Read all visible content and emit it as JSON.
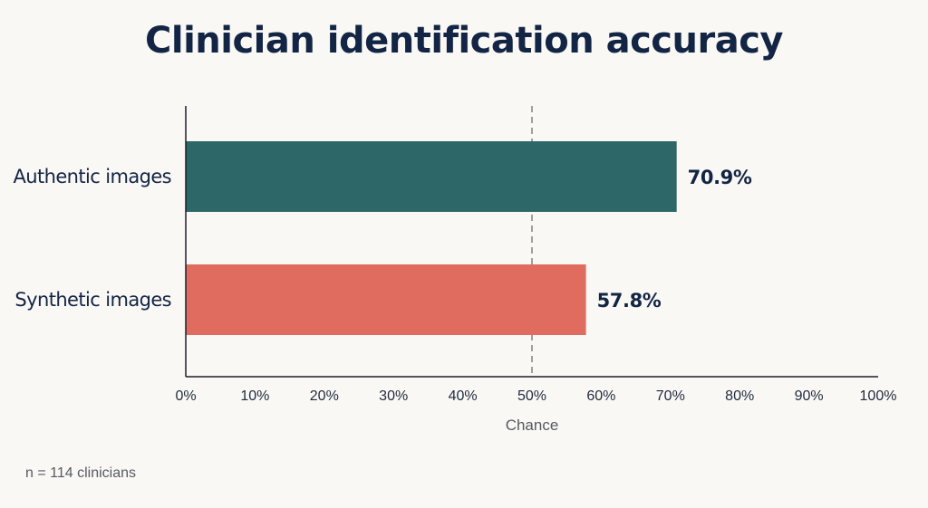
{
  "chart_data": {
    "type": "bar",
    "orientation": "horizontal",
    "title": "Clinician identification accuracy",
    "categories": [
      "Authentic images",
      "Synthetic images"
    ],
    "values": [
      70.9,
      57.8
    ],
    "value_labels": [
      "70.9%",
      "57.8%"
    ],
    "colors": [
      "#2e6767",
      "#e06b5f"
    ],
    "xlim": [
      0,
      100
    ],
    "xticks": [
      0,
      10,
      20,
      30,
      40,
      50,
      60,
      70,
      80,
      90,
      100
    ],
    "xtick_labels": [
      "0%",
      "10%",
      "20%",
      "30%",
      "40%",
      "50%",
      "60%",
      "70%",
      "80%",
      "90%",
      "100%"
    ],
    "reference_line": {
      "value": 50,
      "label": "Chance",
      "style": "dashed"
    },
    "grid": false,
    "note": "n = 114 clinicians"
  }
}
